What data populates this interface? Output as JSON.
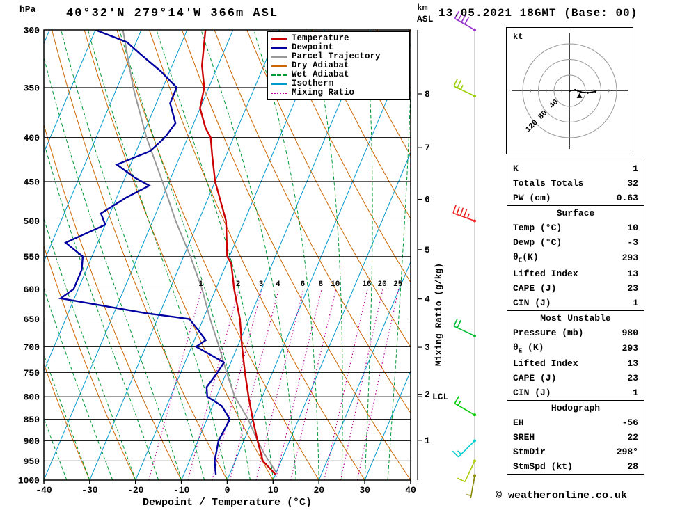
{
  "header": {
    "pressure_unit": "hPa",
    "title": "40°32'N 279°14'W 366m ASL",
    "altitude_unit_line1": "km",
    "altitude_unit_line2": "ASL",
    "date": "13.05.2021 18GMT (Base: 00)"
  },
  "chart_data": {
    "type": "skewt-log-p-sounding",
    "title": "40°32'N 279°14'W 366m ASL",
    "xlabel": "Dewpoint / Temperature (°C)",
    "x_ticks": [
      -40,
      -30,
      -20,
      -10,
      0,
      10,
      20,
      30,
      40
    ],
    "x_range": [
      -40,
      40
    ],
    "pressure_ticks": [
      300,
      350,
      400,
      450,
      500,
      550,
      600,
      650,
      700,
      750,
      800,
      850,
      900,
      950,
      1000
    ],
    "pressure_range_hpa": [
      300,
      1000
    ],
    "km_ticks": [
      1,
      2,
      3,
      4,
      5,
      6,
      7,
      8
    ],
    "lcl_label": "LCL",
    "lcl_pressure_hpa": 800,
    "mixing_ratio_axis_label": "Mixing Ratio (g/kg)",
    "mixing_ratio_values": [
      1,
      2,
      3,
      4,
      6,
      8,
      10,
      16,
      20,
      25
    ],
    "colors": {
      "temperature": "#cc0000",
      "dewpoint": "#0000a0",
      "parcel": "#999999",
      "dry_adiabat": "#cc6600",
      "wet_adiabat": "#009933",
      "isotherm": "#0099cc",
      "mixing_ratio": "#bb0099",
      "grid": "#000000"
    },
    "legend": [
      {
        "label": "Temperature",
        "color": "#cc0000",
        "style": "solid"
      },
      {
        "label": "Dewpoint",
        "color": "#0000a0",
        "style": "solid"
      },
      {
        "label": "Parcel Trajectory",
        "color": "#999999",
        "style": "solid"
      },
      {
        "label": "Dry Adiabat",
        "color": "#cc6600",
        "style": "solid"
      },
      {
        "label": "Wet Adiabat",
        "color": "#009933",
        "style": "dashed"
      },
      {
        "label": "Isotherm",
        "color": "#0099cc",
        "style": "solid"
      },
      {
        "label": "Mixing Ratio",
        "color": "#bb0099",
        "style": "dotted"
      }
    ],
    "temperature_profile_p_T": [
      [
        985,
        10
      ],
      [
        950,
        6
      ],
      [
        900,
        3
      ],
      [
        850,
        0
      ],
      [
        800,
        -3
      ],
      [
        750,
        -6
      ],
      [
        700,
        -9
      ],
      [
        650,
        -12
      ],
      [
        600,
        -16
      ],
      [
        560,
        -19
      ],
      [
        550,
        -20.5
      ],
      [
        500,
        -24
      ],
      [
        450,
        -30
      ],
      [
        420,
        -33
      ],
      [
        400,
        -35
      ],
      [
        390,
        -37
      ],
      [
        370,
        -40
      ],
      [
        350,
        -41
      ],
      [
        330,
        -43.5
      ],
      [
        300,
        -46
      ]
    ],
    "dewpoint_profile_p_T": [
      [
        985,
        -3
      ],
      [
        950,
        -4.5
      ],
      [
        900,
        -5.5
      ],
      [
        850,
        -5
      ],
      [
        820,
        -8
      ],
      [
        800,
        -12
      ],
      [
        780,
        -13
      ],
      [
        750,
        -12
      ],
      [
        730,
        -11.5
      ],
      [
        700,
        -19
      ],
      [
        688,
        -17.5
      ],
      [
        670,
        -20
      ],
      [
        650,
        -23
      ],
      [
        640,
        -33
      ],
      [
        615,
        -53
      ],
      [
        600,
        -51
      ],
      [
        570,
        -51
      ],
      [
        550,
        -52
      ],
      [
        530,
        -57
      ],
      [
        505,
        -50
      ],
      [
        490,
        -52
      ],
      [
        470,
        -48
      ],
      [
        455,
        -44
      ],
      [
        445,
        -48
      ],
      [
        430,
        -53
      ],
      [
        415,
        -47
      ],
      [
        400,
        -45
      ],
      [
        385,
        -44
      ],
      [
        365,
        -47
      ],
      [
        350,
        -47
      ],
      [
        335,
        -52
      ],
      [
        320,
        -58
      ],
      [
        310,
        -62
      ],
      [
        300,
        -70
      ]
    ],
    "parcel_profile_p_T": [
      [
        980,
        10
      ],
      [
        930,
        5.5
      ],
      [
        900,
        3
      ],
      [
        850,
        -1
      ],
      [
        800,
        -6
      ],
      [
        750,
        -10
      ],
      [
        700,
        -14
      ],
      [
        650,
        -18.5
      ],
      [
        600,
        -23
      ],
      [
        550,
        -28.5
      ],
      [
        500,
        -35
      ],
      [
        450,
        -41.5
      ],
      [
        400,
        -49
      ],
      [
        350,
        -56.5
      ],
      [
        300,
        -64
      ]
    ]
  },
  "wind_barbs": [
    {
      "pressure_hpa": 300,
      "speed_kt_est": 40,
      "staff_azimuth_deg": 300,
      "color": "#9933cc"
    },
    {
      "pressure_hpa": 358,
      "speed_kt_est": 25,
      "staff_azimuth_deg": 295,
      "color": "#99cc00"
    },
    {
      "pressure_hpa": 500,
      "speed_kt_est": 45,
      "staff_azimuth_deg": 290,
      "color": "#ee2222"
    },
    {
      "pressure_hpa": 680,
      "speed_kt_est": 20,
      "staff_azimuth_deg": 295,
      "color": "#00bb33"
    },
    {
      "pressure_hpa": 840,
      "speed_kt_est": 15,
      "staff_azimuth_deg": 300,
      "color": "#00cc00"
    },
    {
      "pressure_hpa": 900,
      "speed_kt_est": 15,
      "staff_azimuth_deg": 225,
      "color": "#00cccc"
    },
    {
      "pressure_hpa": 950,
      "speed_kt_est": 10,
      "staff_azimuth_deg": 205,
      "color": "#aacc00"
    },
    {
      "pressure_hpa": 988,
      "speed_kt_est": 5,
      "staff_azimuth_deg": 190,
      "color": "#888800"
    }
  ],
  "hodograph": {
    "unit_label": "kt",
    "ring_labels": [
      "40",
      "80",
      "120"
    ],
    "ring_values_kt": [
      40,
      80,
      120
    ],
    "trace_uv_kt": [
      [
        0,
        0
      ],
      [
        14,
        2
      ],
      [
        28,
        -3
      ],
      [
        46,
        -5
      ],
      [
        66,
        -2
      ]
    ],
    "storm_motion_uv_kt": [
      25,
      -13
    ]
  },
  "stats": {
    "indices": {
      "rows": [
        {
          "label": "K",
          "value": "1"
        },
        {
          "label": "Totals Totals",
          "value": "32"
        },
        {
          "label": "PW (cm)",
          "value": "0.63"
        }
      ]
    },
    "surface": {
      "title": "Surface",
      "rows": [
        {
          "label": "Temp (°C)",
          "value": "10"
        },
        {
          "label": "Dewp (°C)",
          "value": "-3"
        },
        {
          "label_pre": "θ",
          "label_sub": "E",
          "label_post": "(K)",
          "value": "293"
        },
        {
          "label": "Lifted Index",
          "value": "13"
        },
        {
          "label": "CAPE (J)",
          "value": "23"
        },
        {
          "label": "CIN (J)",
          "value": "1"
        }
      ]
    },
    "most_unstable": {
      "title": "Most Unstable",
      "rows": [
        {
          "label": "Pressure (mb)",
          "value": "980"
        },
        {
          "label_pre": "θ",
          "label_sub": "E",
          "label_post": " (K)",
          "value": "293"
        },
        {
          "label": "Lifted Index",
          "value": "13"
        },
        {
          "label": "CAPE (J)",
          "value": "23"
        },
        {
          "label": "CIN (J)",
          "value": "1"
        }
      ]
    },
    "hodograph_stats": {
      "title": "Hodograph",
      "rows": [
        {
          "label": "EH",
          "value": "-56"
        },
        {
          "label": "SREH",
          "value": "22"
        },
        {
          "label": "StmDir",
          "value": "298°"
        },
        {
          "label": "StmSpd (kt)",
          "value": "28"
        }
      ]
    }
  },
  "footer": "© weatheronline.co.uk"
}
